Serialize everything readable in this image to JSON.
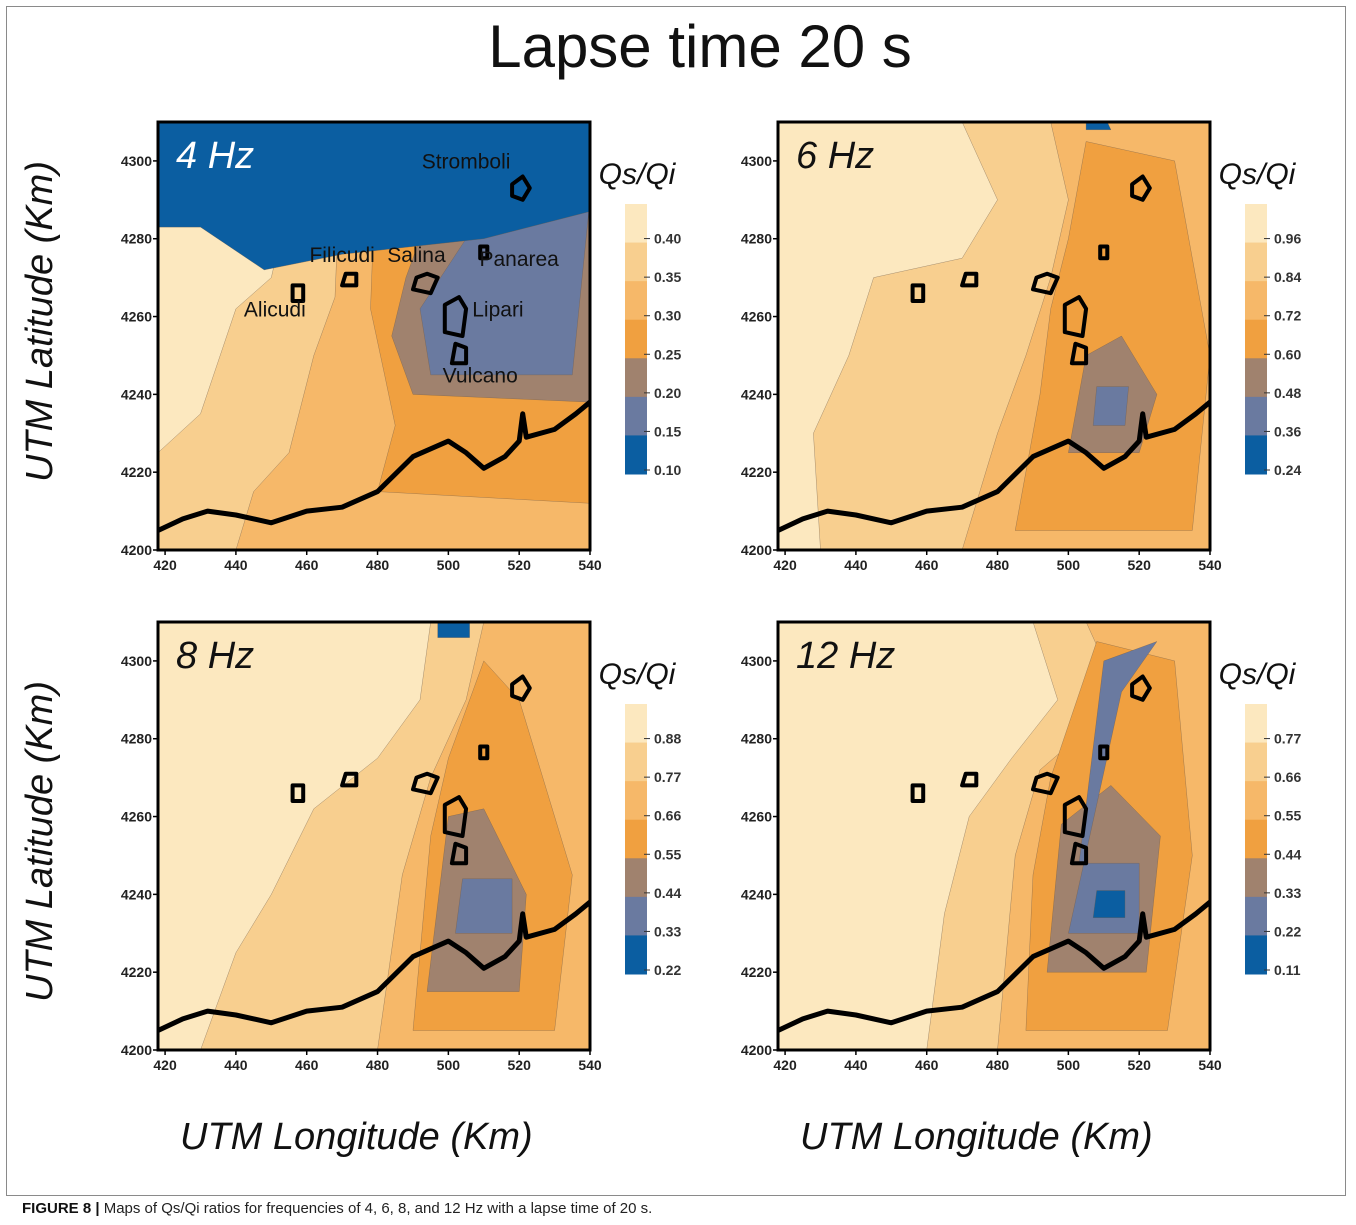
{
  "title": "Lapse time 20 s",
  "caption": {
    "figure_label": "FIGURE 8 |",
    "text": " Maps of Qs/Qi ratios for frequencies of 4, 6, 8, and 12 Hz with a lapse time of 20 s."
  },
  "axis_labels": {
    "y": "UTM Latitude (Km)",
    "x": "UTM Longitude (Km)"
  },
  "colorbar_colors": [
    "#0b5ea1",
    "#6a7aa0",
    "#a0826e",
    "#f0a040",
    "#f6b869",
    "#f8cf8f",
    "#fce8bf"
  ],
  "chart_data": [
    {
      "type": "heatmap",
      "panel_label": "4 Hz",
      "colorbar_title": "Qs/Qi",
      "colorbar_ticks": [
        "0.40",
        "0.35",
        "0.30",
        "0.25",
        "0.20",
        "0.15",
        "0.10"
      ],
      "xticks": [
        "420",
        "440",
        "460",
        "480",
        "500",
        "520",
        "540"
      ],
      "yticks": [
        "4300",
        "4280",
        "4260",
        "4240",
        "4220",
        "4200"
      ],
      "xlim": [
        418,
        540
      ],
      "ylim": [
        4200,
        4310
      ],
      "islands": [
        {
          "name": "Stromboli",
          "x": 520,
          "y": 4293
        },
        {
          "name": "Panarea",
          "x": 510,
          "y": 4276
        },
        {
          "name": "Salina",
          "x": 493,
          "y": 4268
        },
        {
          "name": "Filicudi",
          "x": 472,
          "y": 4269
        },
        {
          "name": "Alicudi",
          "x": 457,
          "y": 4266
        },
        {
          "name": "Lipari",
          "x": 502,
          "y": 4261
        },
        {
          "name": "Vulcano",
          "x": 503,
          "y": 4250
        }
      ]
    },
    {
      "type": "heatmap",
      "panel_label": "6 Hz",
      "colorbar_title": "Qs/Qi",
      "colorbar_ticks": [
        "0.96",
        "0.84",
        "0.72",
        "0.60",
        "0.48",
        "0.36",
        "0.24"
      ],
      "xticks": [
        "420",
        "440",
        "460",
        "480",
        "500",
        "520",
        "540"
      ],
      "yticks": [
        "4300",
        "4280",
        "4260",
        "4240",
        "4220",
        "4200"
      ],
      "xlim": [
        418,
        540
      ],
      "ylim": [
        4200,
        4310
      ]
    },
    {
      "type": "heatmap",
      "panel_label": "8 Hz",
      "colorbar_title": "Qs/Qi",
      "colorbar_ticks": [
        "0.88",
        "0.77",
        "0.66",
        "0.55",
        "0.44",
        "0.33",
        "0.22"
      ],
      "xticks": [
        "420",
        "440",
        "460",
        "480",
        "500",
        "520",
        "540"
      ],
      "yticks": [
        "4300",
        "4280",
        "4260",
        "4240",
        "4220",
        "4200"
      ],
      "xlim": [
        418,
        540
      ],
      "ylim": [
        4200,
        4310
      ]
    },
    {
      "type": "heatmap",
      "panel_label": "12 Hz",
      "colorbar_title": "Qs/Qi",
      "colorbar_ticks": [
        "0.77",
        "0.66",
        "0.55",
        "0.44",
        "0.33",
        "0.22",
        "0.11"
      ],
      "xticks": [
        "420",
        "440",
        "460",
        "480",
        "500",
        "520",
        "540"
      ],
      "yticks": [
        "4300",
        "4280",
        "4260",
        "4240",
        "4220",
        "4200"
      ],
      "xlim": [
        418,
        540
      ],
      "ylim": [
        4200,
        4310
      ]
    }
  ]
}
